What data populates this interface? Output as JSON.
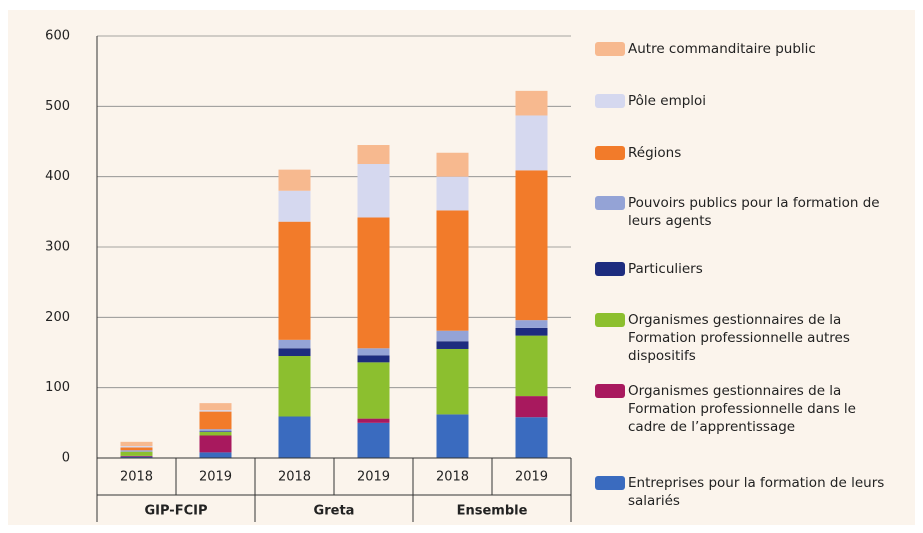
{
  "chart_data": {
    "type": "stacked_bar",
    "categories": [
      "2018",
      "2019",
      "2018",
      "2019",
      "2018",
      "2019"
    ],
    "groups": [
      "GIP-FCIP",
      "Greta",
      "Ensemble"
    ],
    "ylim": [
      0,
      600
    ],
    "yticks": [
      0,
      100,
      200,
      300,
      400,
      500,
      600
    ],
    "grid": true,
    "series": [
      {
        "name": "Entreprises pour la formation de leurs salariés",
        "color": "#3a6bbf",
        "values": [
          2,
          8,
          59,
          50,
          62,
          58
        ]
      },
      {
        "name": "Organismes gestionnaires de la Formation professionnelle dans le cadre de l’apprentissage",
        "color": "#a8195e",
        "values": [
          1,
          24,
          0,
          6,
          0,
          30
        ]
      },
      {
        "name": "Organismes gestionnaires de la Formation professionnelle autres dispositifs",
        "color": "#8cbf2f",
        "values": [
          6,
          5,
          86,
          80,
          93,
          86
        ]
      },
      {
        "name": "Particuliers",
        "color": "#1d2c7f",
        "values": [
          0,
          1,
          11,
          10,
          11,
          11
        ]
      },
      {
        "name": "Pouvoirs publics pour la formation de leurs agents",
        "color": "#94a3d6",
        "values": [
          2,
          3,
          12,
          10,
          15,
          11
        ]
      },
      {
        "name": "Régions",
        "color": "#f27b2a",
        "values": [
          4,
          25,
          168,
          186,
          171,
          213
        ]
      },
      {
        "name": "Pôle emploi",
        "color": "#d5d8ef",
        "values": [
          2,
          2,
          44,
          76,
          48,
          78
        ]
      },
      {
        "name": "Autre commanditaire public",
        "color": "#f7b98f",
        "values": [
          6,
          10,
          30,
          27,
          34,
          35
        ]
      }
    ]
  }
}
